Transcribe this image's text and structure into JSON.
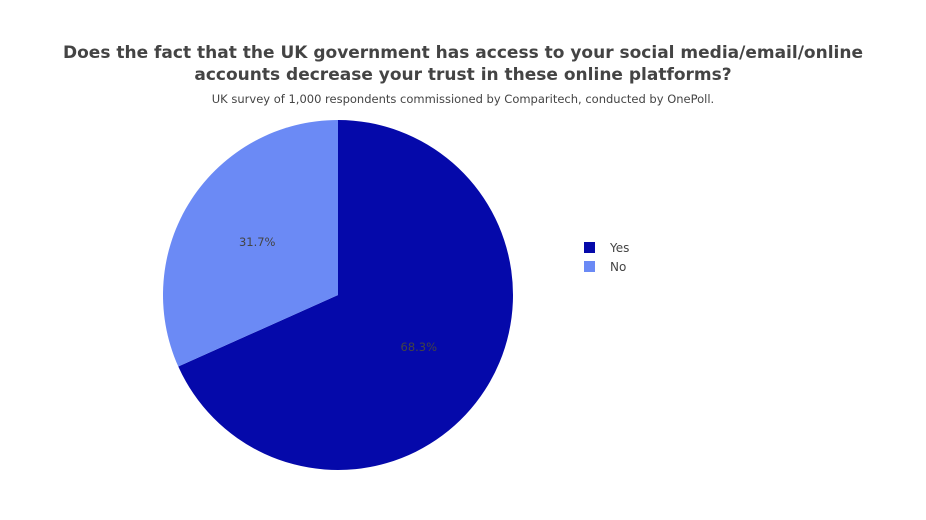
{
  "chart_data": {
    "type": "pie",
    "title_lines": [
      "Does the fact that the UK government has access to your social media/email/online",
      "accounts decrease your trust in these online platforms?"
    ],
    "subtitle": "UK survey of 1,000 respondents commissioned by Comparitech, conducted by OnePoll.",
    "slices": [
      {
        "label": "Yes",
        "value": 68.3,
        "text": "68.3%",
        "color": "#0509aa"
      },
      {
        "label": "No",
        "value": 31.7,
        "text": "31.7%",
        "color": "#6b8af5"
      }
    ],
    "label_text_color": "#444444",
    "legend_position": "right",
    "direction": "clockwise",
    "start_angle": "top"
  }
}
